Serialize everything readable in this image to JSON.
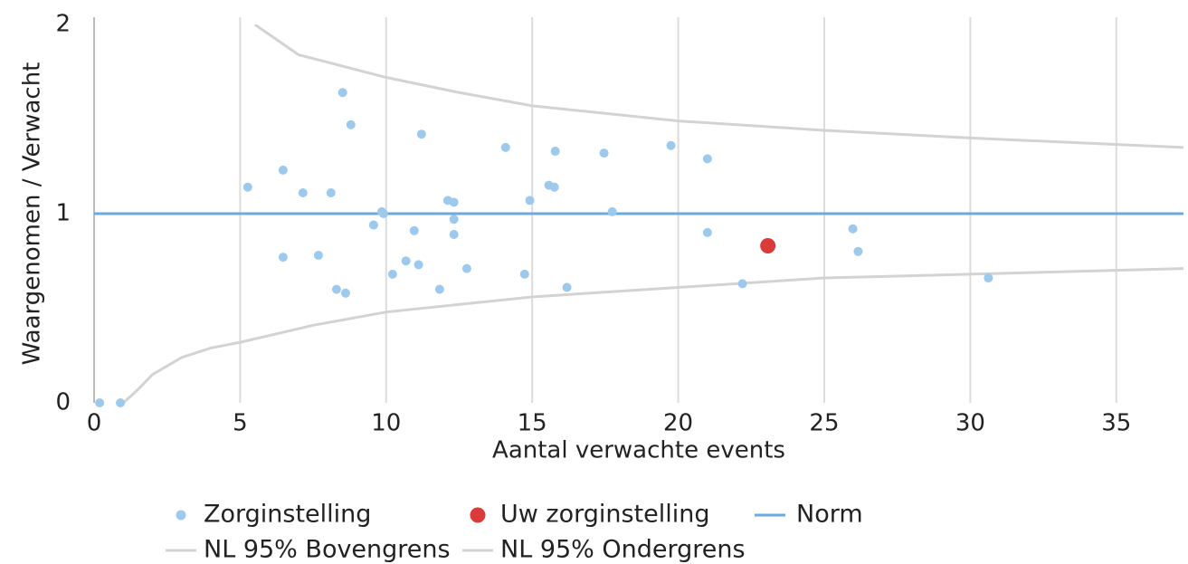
{
  "chart_data": {
    "type": "scatter",
    "xlabel": "Aantal verwachte events",
    "ylabel": "Waargenomen / Verwacht",
    "xlim": [
      0,
      37.3
    ],
    "ylim": [
      0,
      2
    ],
    "xticks": [
      0,
      5,
      10,
      15,
      20,
      25,
      30,
      35
    ],
    "yticks": [
      0,
      1,
      2
    ],
    "grid": "x",
    "legend": "bottom",
    "series": [
      {
        "name": "Zorginstelling",
        "kind": "scatter",
        "color": "#9cc9ec",
        "x": [
          0.19,
          0.9,
          5.26,
          6.47,
          6.47,
          7.15,
          7.68,
          8.11,
          8.3,
          8.51,
          8.61,
          8.79,
          9.57,
          9.85,
          9.91,
          10.22,
          10.68,
          10.96,
          11.11,
          11.21,
          11.83,
          12.11,
          12.32,
          12.32,
          12.32,
          12.76,
          14.09,
          14.74,
          14.92,
          15.57,
          15.76,
          15.79,
          16.19,
          17.46,
          17.74,
          19.75,
          21.0,
          21.0,
          22.2,
          25.98,
          26.16,
          30.62
        ],
        "values": [
          0,
          0,
          1.14,
          1.23,
          0.77,
          1.11,
          0.78,
          1.11,
          0.6,
          1.64,
          0.58,
          1.47,
          0.94,
          1.01,
          1.0,
          0.68,
          0.75,
          0.91,
          0.73,
          1.42,
          0.6,
          1.07,
          1.06,
          0.97,
          0.89,
          0.71,
          1.35,
          0.68,
          1.07,
          1.15,
          1.14,
          1.33,
          0.61,
          1.32,
          1.01,
          1.36,
          1.29,
          0.9,
          0.63,
          0.92,
          0.8,
          0.66
        ]
      },
      {
        "name": "Uw zorginstelling",
        "kind": "scatter",
        "color": "#d93a3a",
        "x": [
          23.07
        ],
        "values": [
          0.83
        ]
      },
      {
        "name": "Norm",
        "kind": "line",
        "color": "#6fa8dc",
        "x": [
          0,
          37.3
        ],
        "values": [
          1,
          1
        ]
      },
      {
        "name": "NL 95% Bovengrens",
        "kind": "line",
        "color": "#d3d3d3",
        "x": [
          5.5,
          7,
          8,
          10,
          12.5,
          15,
          20,
          25,
          30,
          37.3
        ],
        "values": [
          2.0,
          1.84,
          1.8,
          1.72,
          1.64,
          1.57,
          1.49,
          1.44,
          1.4,
          1.35
        ]
      },
      {
        "name": "NL 95% Ondergrens",
        "kind": "line",
        "color": "#d3d3d3",
        "x": [
          1,
          1.5,
          2,
          3,
          4,
          5,
          7.5,
          10,
          15,
          20,
          25,
          30,
          37.3
        ],
        "values": [
          0,
          0.07,
          0.15,
          0.24,
          0.29,
          0.32,
          0.41,
          0.48,
          0.56,
          0.61,
          0.66,
          0.68,
          0.71
        ]
      }
    ]
  }
}
